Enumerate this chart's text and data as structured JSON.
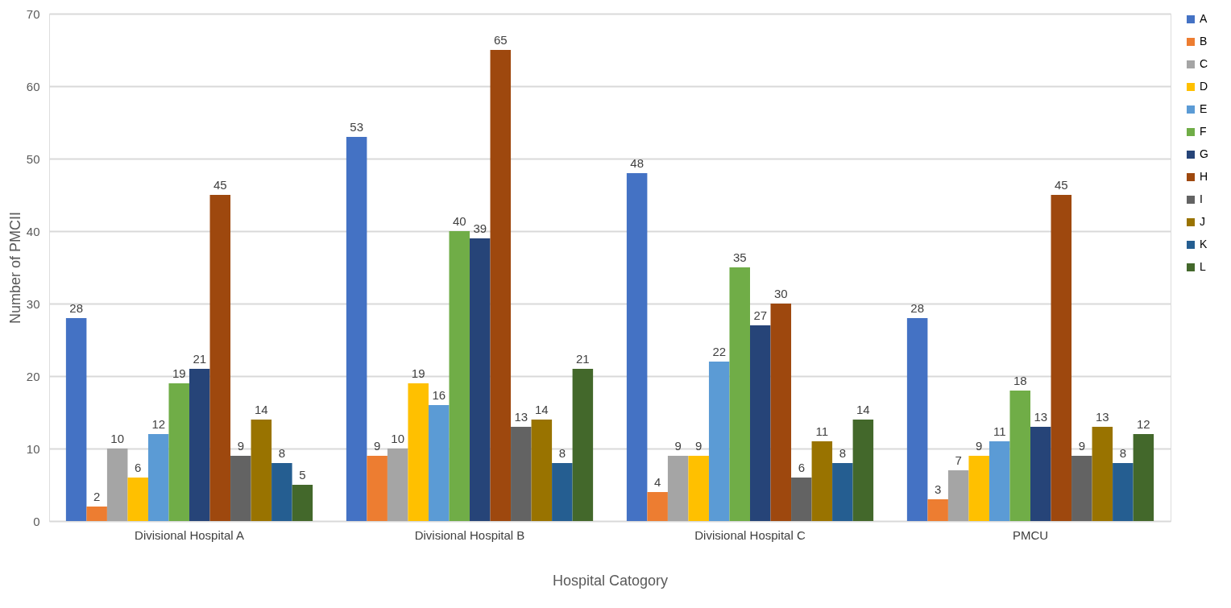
{
  "chart_data": {
    "type": "bar",
    "xlabel": "Hospital Catogory",
    "ylabel": "Number of PMCII",
    "categories": [
      "Divisional Hospital A",
      "Divisional Hospital B",
      "Divisional Hospital C",
      "PMCU"
    ],
    "series": [
      {
        "name": "A",
        "color": "#4472c4",
        "values": [
          28,
          53,
          48,
          28
        ]
      },
      {
        "name": "B",
        "color": "#ed7d31",
        "values": [
          2,
          9,
          4,
          3
        ]
      },
      {
        "name": "C",
        "color": "#a5a5a5",
        "values": [
          10,
          10,
          9,
          7
        ]
      },
      {
        "name": "D",
        "color": "#ffc000",
        "values": [
          6,
          19,
          9,
          9
        ]
      },
      {
        "name": "E",
        "color": "#5b9bd5",
        "values": [
          12,
          16,
          22,
          11
        ]
      },
      {
        "name": "F",
        "color": "#70ad47",
        "values": [
          19,
          40,
          35,
          18
        ]
      },
      {
        "name": "G",
        "color": "#264478",
        "values": [
          21,
          39,
          27,
          13
        ]
      },
      {
        "name": "H",
        "color": "#9e480e",
        "values": [
          45,
          65,
          30,
          45
        ]
      },
      {
        "name": "I",
        "color": "#636363",
        "values": [
          9,
          13,
          6,
          9
        ]
      },
      {
        "name": "J",
        "color": "#997300",
        "values": [
          14,
          14,
          11,
          13
        ]
      },
      {
        "name": "K",
        "color": "#255e91",
        "values": [
          8,
          8,
          8,
          8
        ]
      },
      {
        "name": "L",
        "color": "#43682b",
        "values": [
          5,
          21,
          14,
          12
        ]
      }
    ],
    "ylim": [
      0,
      70
    ],
    "yticks": [
      0,
      10,
      20,
      30,
      40,
      50,
      60,
      70
    ],
    "grid": "y",
    "legend": "right",
    "data_labels": true
  }
}
